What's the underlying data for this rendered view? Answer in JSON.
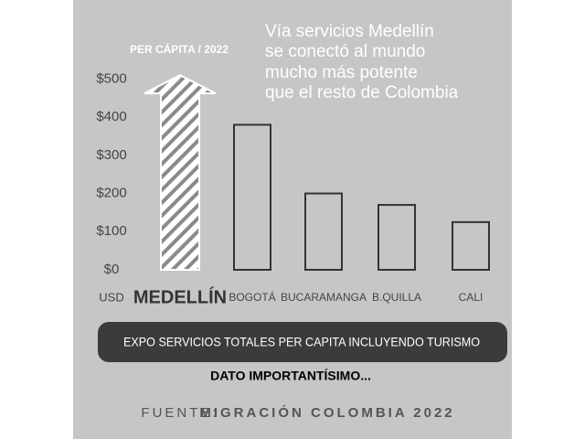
{
  "chart_data": {
    "type": "bar",
    "title": [
      "Vía servicios Medellín",
      "se conectó al mundo",
      "mucho más potente",
      "que el resto de Colombia"
    ],
    "subtitle": "PER CÁPITA / 2022",
    "y_unit": "USD",
    "categories": [
      "MEDELLÍN",
      "BOGOTÁ",
      "BUCARAMANGA",
      "B.QUILLA",
      "CALI"
    ],
    "values": [
      510,
      380,
      200,
      170,
      125
    ],
    "highlight_color": "#8a8a8a",
    "color": "#333333",
    "ylim": [
      0,
      520
    ],
    "yticks": [
      {
        "value": 0,
        "label": "$0"
      },
      {
        "value": 100,
        "label": "$100"
      },
      {
        "value": 200,
        "label": "$200"
      },
      {
        "value": 300,
        "label": "$300"
      },
      {
        "value": 400,
        "label": "$400"
      },
      {
        "value": 500,
        "label": "$500"
      }
    ],
    "grid": false,
    "banner": "EXPO SERVICIOS TOTALES PER CAPITA INCLUYENDO TURISMO",
    "note": "DATO IMPORTANTÍSIMO...",
    "source_prefix": "FUENTE:",
    "source": "MIGRACIÓN COLOMBIA 2022"
  }
}
